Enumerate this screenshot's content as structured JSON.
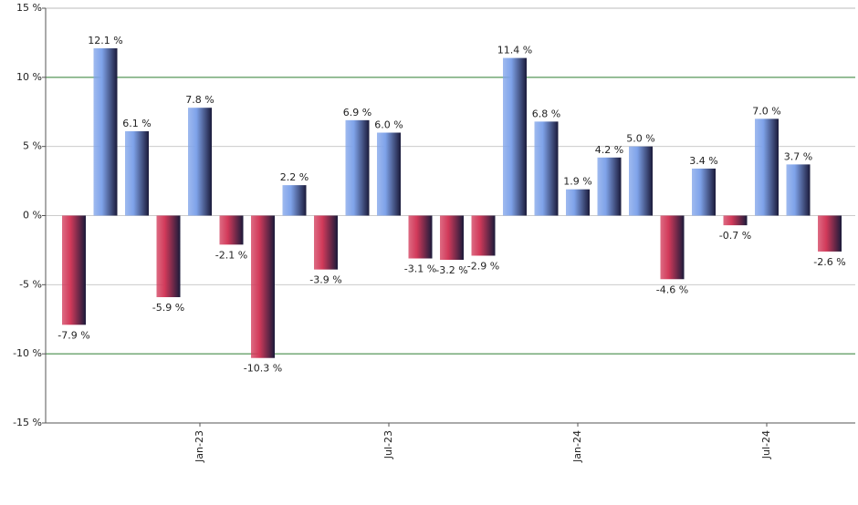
{
  "chart_data": {
    "type": "bar",
    "categories": [
      null,
      null,
      null,
      null,
      "Jan-23",
      null,
      null,
      null,
      null,
      null,
      "Jul-23",
      null,
      null,
      null,
      null,
      null,
      "Jan-24",
      null,
      null,
      null,
      null,
      null,
      "Jul-24",
      null,
      null
    ],
    "values": [
      -7.9,
      12.1,
      6.1,
      -5.9,
      7.8,
      -2.1,
      -10.3,
      2.2,
      -3.9,
      6.9,
      6.0,
      -3.1,
      -3.2,
      -2.9,
      11.4,
      6.8,
      1.9,
      4.2,
      5.0,
      -4.6,
      3.4,
      -0.7,
      7.0,
      3.7,
      -2.6
    ],
    "value_labels": [
      "-7.9 %",
      "12.1 %",
      "6.1 %",
      "-5.9 %",
      "7.8 %",
      "-2.1 %",
      "-10.3 %",
      "2.2 %",
      "-3.9 %",
      "6.9 %",
      "6.0 %",
      "-3.1 %",
      "-3.2 %",
      "-2.9 %",
      "11.4 %",
      "6.8 %",
      "1.9 %",
      "4.2 %",
      "5.0 %",
      "-4.6 %",
      "3.4 %",
      "-0.7 %",
      "7.0 %",
      "3.7 %",
      "-2.6 %"
    ],
    "positive_color": "#7fa3ea",
    "negative_color": "#d23a5a",
    "ylim": [
      -15,
      15
    ],
    "yticks": [
      {
        "value": -15,
        "label": "-15 %"
      },
      {
        "value": -10,
        "label": "-10 %"
      },
      {
        "value": -5,
        "label": "-5 %"
      },
      {
        "value": 0,
        "label": "0 %"
      },
      {
        "value": 5,
        "label": "5 %"
      },
      {
        "value": 10,
        "label": "10 %"
      },
      {
        "value": 15,
        "label": "15 %"
      }
    ],
    "grid": true,
    "grid_colors": [
      "#bbbbbb",
      "#2e7d32",
      "#cccccc",
      "#cccccc",
      "#cccccc",
      "#2e7d32",
      "#bbbbbb"
    ]
  }
}
